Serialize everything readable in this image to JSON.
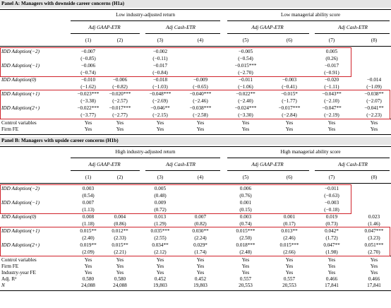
{
  "panelA": {
    "title": "Panel A: Managers with downside career concerns (H1a)",
    "group1": "Low industry-adjusted return",
    "group2": "Low managerial ability score",
    "sub1": "Adj GAAP-ETR",
    "sub2": "Adj Cash-ETR",
    "sub3": "Adj GAAP-ETR",
    "sub4": "Adj Cash-ETR",
    "cols": [
      "(1)",
      "(2)",
      "(3)",
      "(4)",
      "(5)",
      "(6)",
      "(7)",
      "(8)"
    ],
    "rows": [
      {
        "label": "IDD Adoption(−2)",
        "coef": [
          "−0.007",
          "",
          "−0.002",
          "",
          "−0.005",
          "",
          "0.005",
          ""
        ],
        "t": [
          "(−0.85)",
          "",
          "(−0.11)",
          "",
          "(−0.54)",
          "",
          "(0.26)",
          ""
        ]
      },
      {
        "label": "IDD Adoption(−1)",
        "coef": [
          "−0.006",
          "",
          "−0.017",
          "",
          "−0.015***",
          "",
          "−0.017",
          ""
        ],
        "t": [
          "(−0.74)",
          "",
          "(−0.84)",
          "",
          "(−2.70)",
          "",
          "(−0.91)",
          ""
        ]
      },
      {
        "label": "IDD Adoption(0)",
        "coef": [
          "−0.010",
          "−0.006",
          "−0.018",
          "−0.009",
          "−0.011",
          "−0.003",
          "−0.020",
          "−0.014"
        ],
        "t": [
          "(−1.62)",
          "(−0.82)",
          "(−1.03)",
          "(−0.65)",
          "(−1.06)",
          "(−0.41)",
          "(−1.11)",
          "(−1.09)"
        ]
      },
      {
        "label": "IDD Adoption(+1)",
        "coef": [
          "−0.023***",
          "−0.020***",
          "−0.048***",
          "−0.040***",
          "−0.022**",
          "−0.015*",
          "−0.043**",
          "−0.038**"
        ],
        "t": [
          "(−3.38)",
          "(−2.57)",
          "(−2.69)",
          "(−2.46)",
          "(−2.40)",
          "(−1.77)",
          "(−2.10)",
          "(−2.07)"
        ]
      },
      {
        "label": "IDD Adoption(2+)",
        "coef": [
          "−0.022***",
          "−0.017***",
          "−0.046**",
          "−0.038***",
          "−0.024***",
          "−0.017***",
          "−0.047**",
          "−0.041**"
        ],
        "t": [
          "(−3.77)",
          "(−2.77)",
          "(−2.15)",
          "(−2.58)",
          "(−3.30)",
          "(−2.84)",
          "(−2.19)",
          "(−2.23)"
        ]
      }
    ],
    "extra": [
      {
        "label": "Control variables",
        "vals": [
          "Yes",
          "Yes",
          "Yes",
          "Yes",
          "Yes",
          "Yes",
          "Yes",
          "Yes"
        ]
      },
      {
        "label": "Firm FE",
        "vals": [
          "Yes",
          "Yes",
          "Yes",
          "Yes",
          "Yes",
          "Yes",
          "Yes",
          "Yes"
        ]
      }
    ]
  },
  "panelB": {
    "title": "Panel B: Managers with upside career concerns (H1b)",
    "group1": "High industry-adjusted return",
    "group2": "High managerial ability score",
    "sub1": "Adj GAAP-ETR",
    "sub2": "Adj Cash-ETR",
    "sub3": "Adj GAAP-ETR",
    "sub4": "Adj Cash-ETR",
    "cols": [
      "(1)",
      "(2)",
      "(3)",
      "(4)",
      "(5)",
      "(6)",
      "(7)",
      "(8)"
    ],
    "rows": [
      {
        "label": "IDD Adoption(−2)",
        "coef": [
          "0.003",
          "",
          "0.005",
          "",
          "0.006",
          "",
          "−0.011",
          ""
        ],
        "t": [
          "(0.54)",
          "",
          "(0.48)",
          "",
          "(0.76)",
          "",
          "(−0.63)",
          ""
        ]
      },
      {
        "label": "IDD Adoption(−1)",
        "coef": [
          "0.007",
          "",
          "0.009",
          "",
          "0.001",
          "",
          "−0.003",
          ""
        ],
        "t": [
          "(1.13)",
          "",
          "(0.72)",
          "",
          "(0.15)",
          "",
          "(−0.18)",
          ""
        ]
      },
      {
        "label": "IDD Adoption(0)",
        "coef": [
          "0.008",
          "0.004",
          "0.013",
          "0.007",
          "0.003",
          "0.001",
          "0.019",
          "0.023"
        ],
        "t": [
          "(1.18)",
          "(0.86)",
          "(1.29)",
          "(0.82)",
          "(0.74)",
          "(0.17)",
          "(0.73)",
          "(1.46)"
        ]
      },
      {
        "label": "IDD Adoption(+1)",
        "coef": [
          "0.015**",
          "0.012**",
          "0.035***",
          "0.030**",
          "0.015***",
          "0.013**",
          "0.042*",
          "0.047***"
        ],
        "t": [
          "(2.40)",
          "(2.33)",
          "(2.55)",
          "(2.24)",
          "(2.50)",
          "(2.46)",
          "(1.72)",
          "(3.23)"
        ]
      },
      {
        "label": "IDD Adoption(2+)",
        "coef": [
          "0.019**",
          "0.015**",
          "0.034**",
          "0.029*",
          "0.018***",
          "0.015***",
          "0.047**",
          "0.051***"
        ],
        "t": [
          "(2.09)",
          "(2.21)",
          "(2.12)",
          "(1.74)",
          "(2.48)",
          "(2.66)",
          "(1.98)",
          "(2.70)"
        ]
      }
    ],
    "extra": [
      {
        "label": "Control variables",
        "vals": [
          "Yes",
          "Yes",
          "Yes",
          "Yes",
          "Yes",
          "Yes",
          "Yes",
          "Yes"
        ]
      },
      {
        "label": "Firm FE",
        "vals": [
          "Yes",
          "Yes",
          "Yes",
          "Yes",
          "Yes",
          "Yes",
          "Yes",
          "Yes"
        ]
      },
      {
        "label": "Industry-year FE",
        "vals": [
          "Yes",
          "Yes",
          "Yes",
          "Yes",
          "Yes",
          "Yes",
          "Yes",
          "Yes"
        ]
      },
      {
        "label": "Adj. R²",
        "vals": [
          "0.580",
          "0.580",
          "0.452",
          "0.452",
          "0.557",
          "0.557",
          "0.466",
          "0.466"
        ]
      },
      {
        "label": "N",
        "vals": [
          "24,088",
          "24,088",
          "19,803",
          "19,803",
          "20,553",
          "20,553",
          "17,841",
          "17,841"
        ]
      }
    ]
  }
}
